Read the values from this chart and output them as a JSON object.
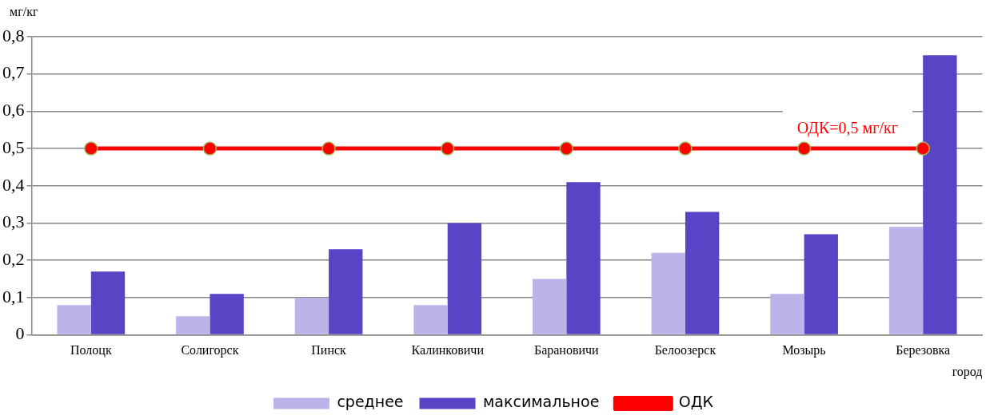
{
  "chart_data": {
    "type": "bar",
    "categories": [
      "Полоцк",
      "Солигорск",
      "Пинск",
      "Калинковичи",
      "Барановичи",
      "Белоозерск",
      "Мозырь",
      "Березовка"
    ],
    "series": [
      {
        "name": "среднее",
        "color": "#bcb4e8",
        "values": [
          0.08,
          0.05,
          0.1,
          0.08,
          0.15,
          0.22,
          0.11,
          0.29
        ]
      },
      {
        "name": "максимальное",
        "color": "#5b43c6",
        "values": [
          0.17,
          0.11,
          0.23,
          0.3,
          0.41,
          0.33,
          0.27,
          0.75
        ]
      },
      {
        "name": "ОДК",
        "type": "line",
        "color": "#ff0000",
        "marker": "circle",
        "values": [
          0.5,
          0.5,
          0.5,
          0.5,
          0.5,
          0.5,
          0.5,
          0.5
        ]
      }
    ],
    "ylabel": "мг/кг",
    "xlabel": "город",
    "ylim": [
      0,
      0.8
    ],
    "yticks": [
      0,
      {
        "value": 0.1,
        "label": "0,1"
      },
      {
        "value": 0.2,
        "label": "0,2"
      },
      {
        "value": 0.3,
        "label": "0,3"
      },
      {
        "value": 0.4,
        "label": "0,4"
      },
      {
        "value": 0.5,
        "label": "0,5"
      },
      {
        "value": 0.6,
        "label": "0,6"
      },
      {
        "value": 0.7,
        "label": "0,7"
      },
      {
        "value": 0.8,
        "label": "0,8"
      }
    ],
    "annotations": [
      {
        "text": "ОДК=0,5 мг/кг",
        "x": "Мозырь",
        "y": 0.5
      }
    ],
    "grid": "y",
    "legend": "bottom"
  }
}
